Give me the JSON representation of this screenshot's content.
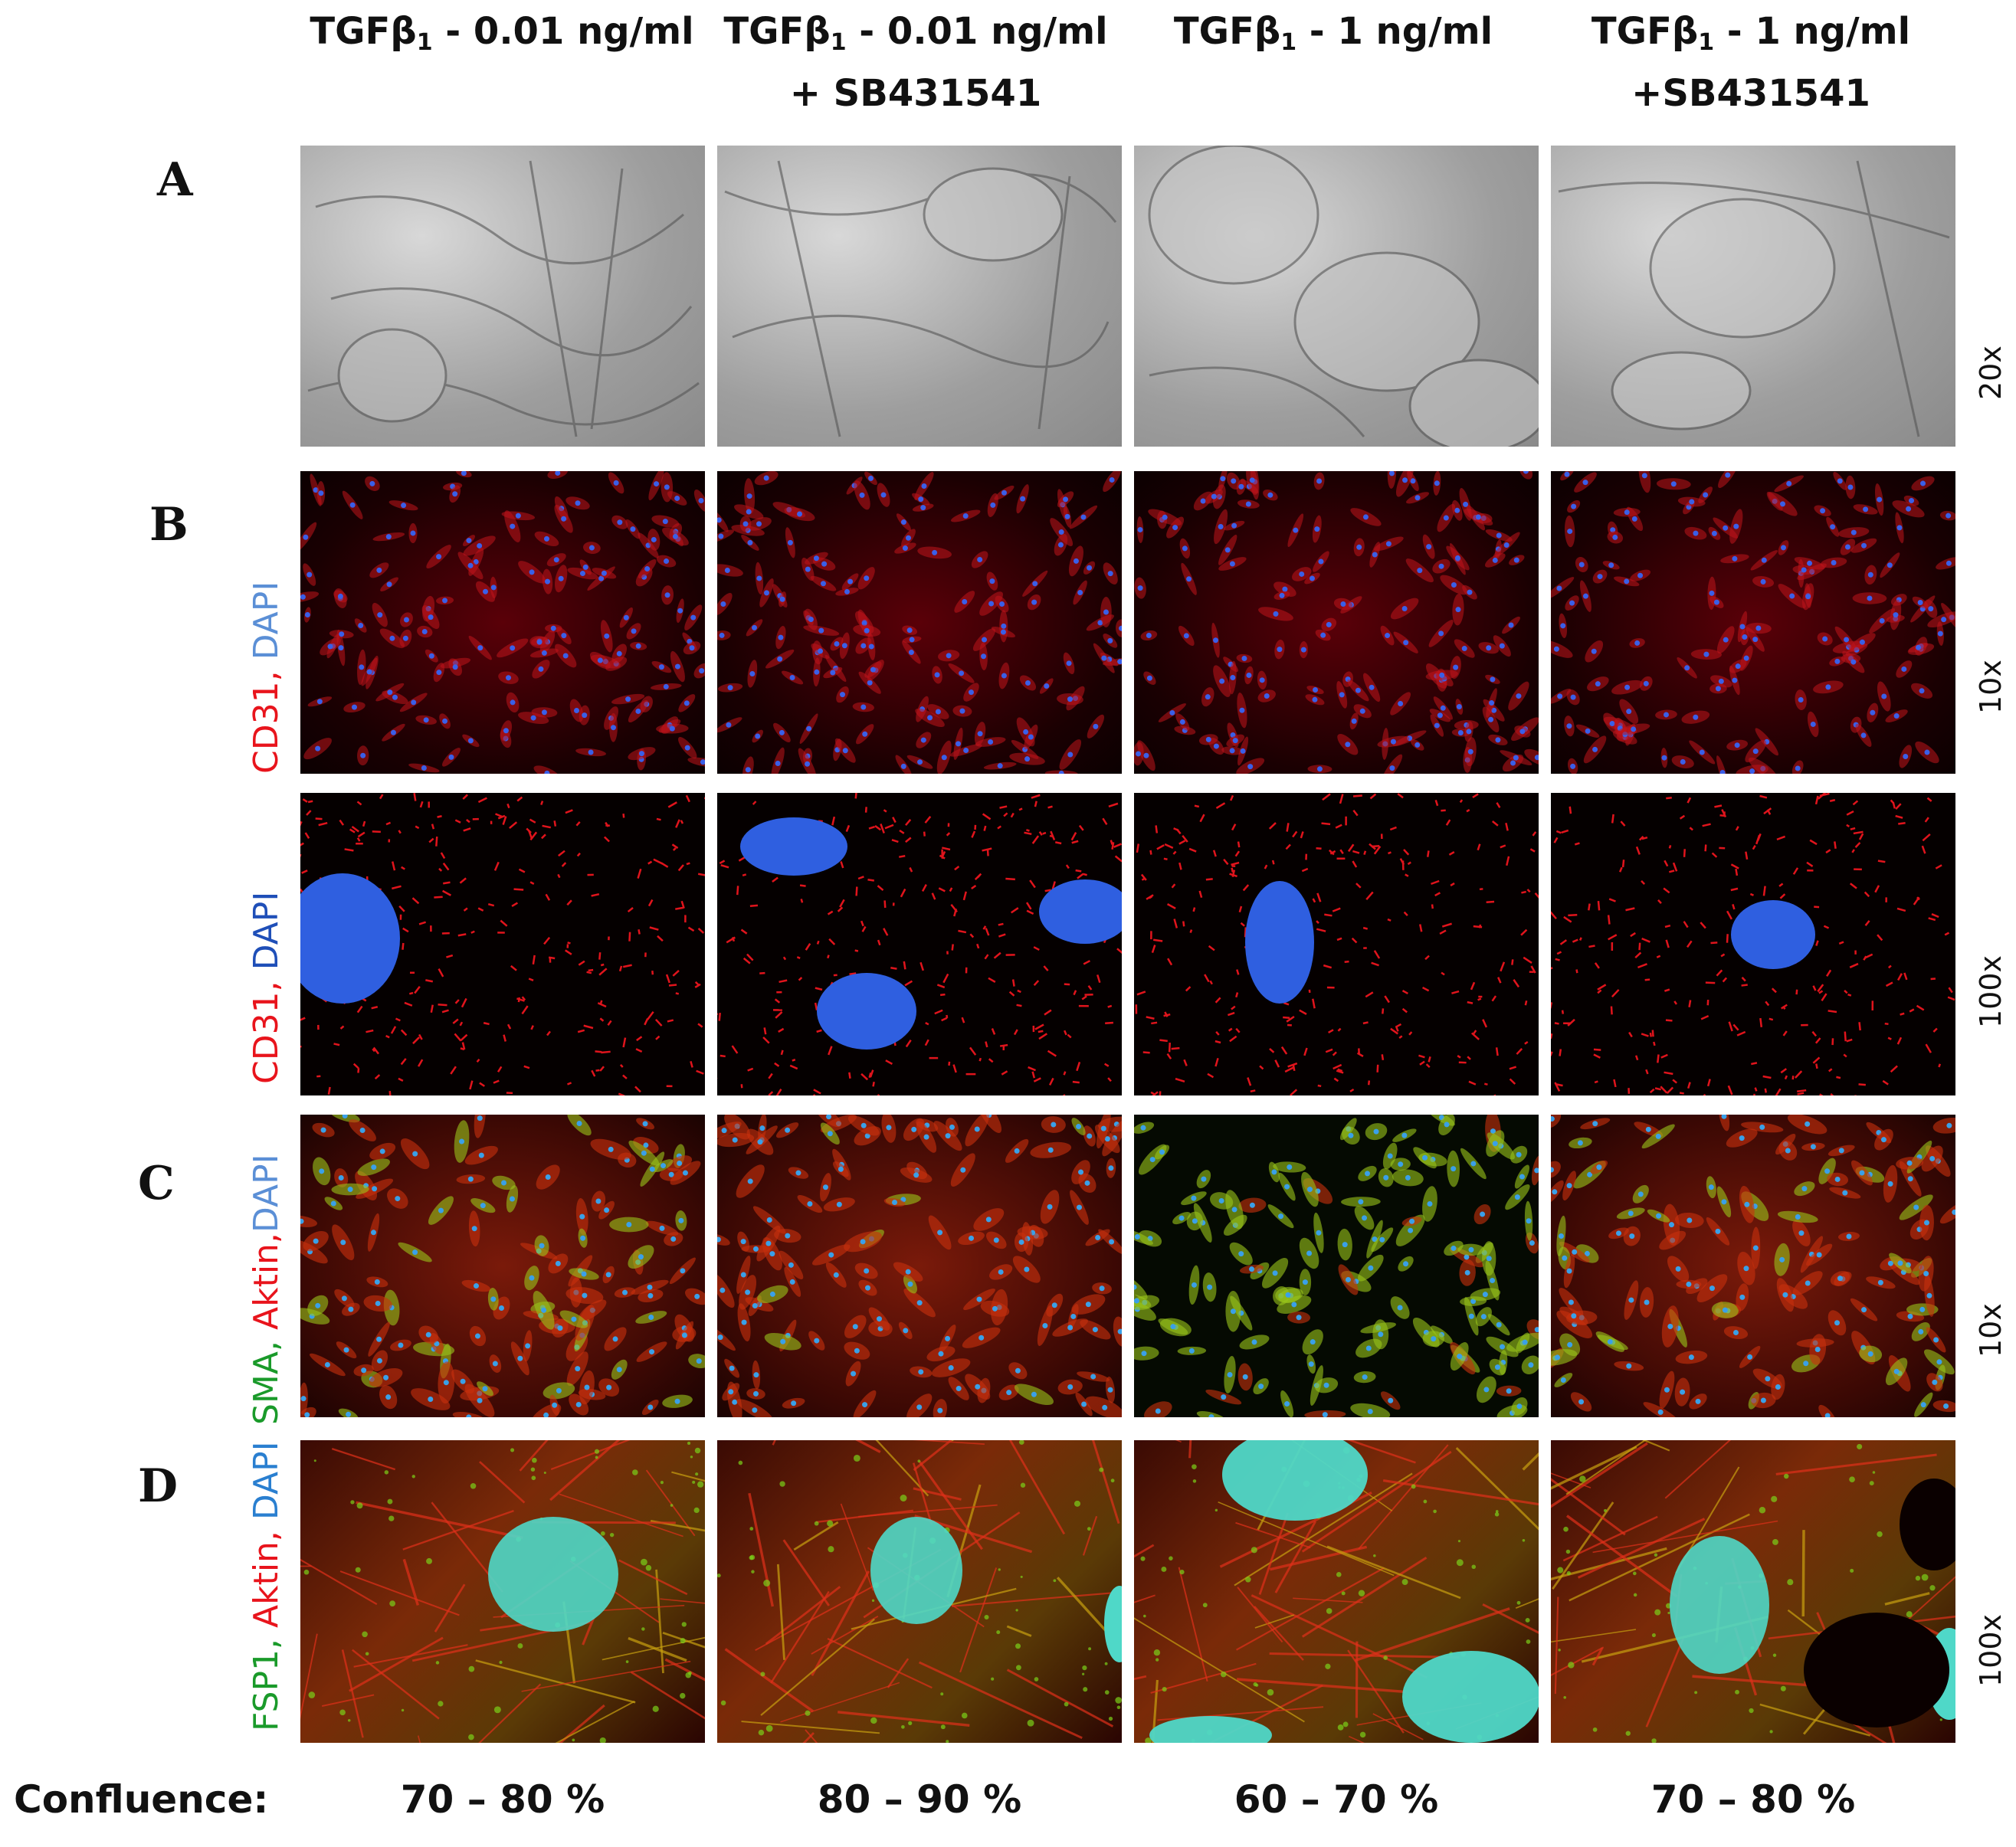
{
  "columns": [
    {
      "line1_pre": "TGFβ",
      "line1_sub": "1",
      "line1_post": " - 0.01 ng/ml",
      "line2": ""
    },
    {
      "line1_pre": "TGFβ",
      "line1_sub": "1",
      "line1_post": " - 0.01 ng/ml",
      "line2": "+ SB431541"
    },
    {
      "line1_pre": "TGFβ",
      "line1_sub": "1",
      "line1_post": " - 1 ng/ml",
      "line2": ""
    },
    {
      "line1_pre": "TGFβ",
      "line1_sub": "1",
      "line1_post": " - 1 ng/ml",
      "line2": "+SB431541"
    }
  ],
  "rows": {
    "A": {
      "letter": "A",
      "magnification": "20x"
    },
    "B1": {
      "letter": "B",
      "magnification": "10x",
      "stain": [
        {
          "text": "CD31",
          "color": "#e8141c"
        },
        {
          "text": ", ",
          "color": "#e8141c"
        },
        {
          "text": "DAPI",
          "color": "#5b8fd6"
        }
      ]
    },
    "B2": {
      "magnification": "100x",
      "stain": [
        {
          "text": "CD31",
          "color": "#e8141c"
        },
        {
          "text": ", ",
          "color": "#e8141c"
        },
        {
          "text": "DAPI",
          "color": "#1f4fb8"
        }
      ]
    },
    "C": {
      "letter": "C",
      "magnification": "10x",
      "stain": [
        {
          "text": "SMA",
          "color": "#1a9a2a"
        },
        {
          "text": ", ",
          "color": "#1a9a2a"
        },
        {
          "text": "Aktin",
          "color": "#e8141c"
        },
        {
          "text": ",",
          "color": "#e8141c"
        },
        {
          "text": "DAPI",
          "color": "#5b8fd6"
        }
      ]
    },
    "D": {
      "letter": "D",
      "magnification": "100x",
      "stain": [
        {
          "text": "FSP1",
          "color": "#1a9a2a"
        },
        {
          "text": ", ",
          "color": "#1a9a2a"
        },
        {
          "text": "Aktin",
          "color": "#e8141c"
        },
        {
          "text": ", ",
          "color": "#e8141c"
        },
        {
          "text": "DAPI",
          "color": "#2a7fd0"
        }
      ]
    }
  },
  "confluence": {
    "label": "Confluence:",
    "values": [
      "70 – 80 %",
      "80 – 90 %",
      "60 – 70 %",
      "70 – 80 %"
    ]
  }
}
